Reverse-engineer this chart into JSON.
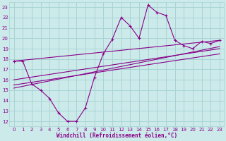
{
  "xlabel": "Windchill (Refroidissement éolien,°C)",
  "bg_color": "#cceaea",
  "grid_color": "#a8d4d4",
  "line_color": "#880088",
  "xlim": [
    -0.5,
    23.5
  ],
  "ylim": [
    11.5,
    23.5
  ],
  "yticks": [
    12,
    13,
    14,
    15,
    16,
    17,
    18,
    19,
    20,
    21,
    22,
    23
  ],
  "xticks": [
    0,
    1,
    2,
    3,
    4,
    5,
    6,
    7,
    8,
    9,
    10,
    11,
    12,
    13,
    14,
    15,
    16,
    17,
    18,
    19,
    20,
    21,
    22,
    23
  ],
  "main_x": [
    0,
    1,
    2,
    3,
    4,
    5,
    6,
    7,
    8,
    9,
    10,
    11,
    12,
    13,
    14,
    15,
    16,
    17,
    18,
    19,
    20,
    21,
    22,
    23
  ],
  "main_y": [
    17.8,
    17.8,
    15.6,
    15.0,
    14.2,
    12.8,
    12.0,
    12.0,
    13.3,
    16.2,
    18.5,
    19.9,
    22.0,
    21.2,
    20.0,
    23.2,
    22.5,
    22.2,
    19.8,
    19.3,
    19.0,
    19.7,
    19.5,
    19.8
  ],
  "line1_x": [
    0,
    23
  ],
  "line1_y": [
    17.8,
    19.8
  ],
  "line2_x": [
    0,
    23
  ],
  "line2_y": [
    16.0,
    19.0
  ],
  "line3_x": [
    0,
    23
  ],
  "line3_y": [
    15.5,
    18.5
  ],
  "line4_x": [
    0,
    23
  ],
  "line4_y": [
    15.2,
    19.2
  ]
}
